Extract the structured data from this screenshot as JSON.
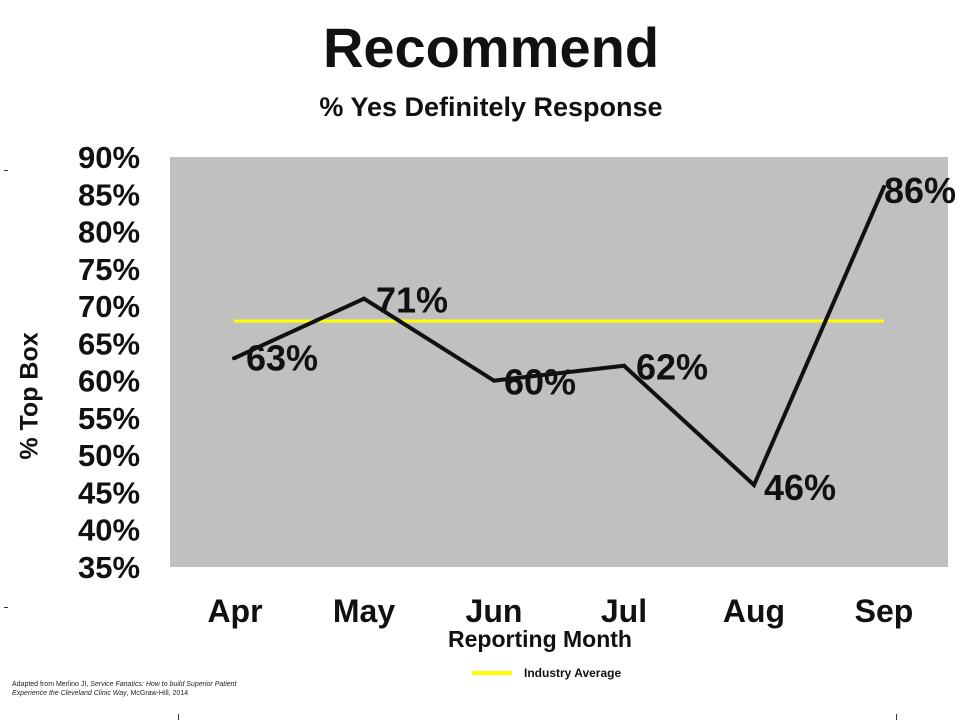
{
  "header": {
    "title": "Recommend",
    "subtitle": "% Yes Definitely Response"
  },
  "legend": {
    "label": "Industry Average"
  },
  "source": {
    "prefix": "Adapted from Merlino JI, ",
    "book_line1": "Service Fanatics: How to build Superior Patient",
    "book_line2": "Experience the Cleveland Clinic Way",
    "suffix": ", McGraw-Hill, 2014"
  },
  "colors": {
    "plot_background": "#c0c0c0",
    "series_line": "#111111",
    "average_line": "#ffff00"
  },
  "chart_data": {
    "type": "line",
    "title": "Recommend",
    "subtitle": "% Yes Definitely Response",
    "xlabel": "Reporting Month",
    "ylabel": "% Top Box",
    "categories": [
      "Apr",
      "May",
      "Jun",
      "Jul",
      "Aug",
      "Sep"
    ],
    "series": [
      {
        "values": [
          63,
          71,
          60,
          62,
          46,
          86
        ],
        "data_labels": [
          "63%",
          "71%",
          "60%",
          "62%",
          "46%",
          "86%"
        ]
      },
      {
        "name": "Industry Average",
        "values": [
          68,
          68,
          68,
          68,
          68,
          68
        ]
      }
    ],
    "ylim": [
      35,
      90
    ],
    "yticks": [
      90,
      85,
      80,
      75,
      70,
      65,
      60,
      55,
      50,
      45,
      40,
      35
    ],
    "ytick_labels": [
      "90%",
      "85%",
      "80%",
      "75%",
      "70%",
      "65%",
      "60%",
      "55%",
      "50%",
      "45%",
      "40%",
      "35%"
    ],
    "grid": false,
    "legend": "bottom"
  }
}
